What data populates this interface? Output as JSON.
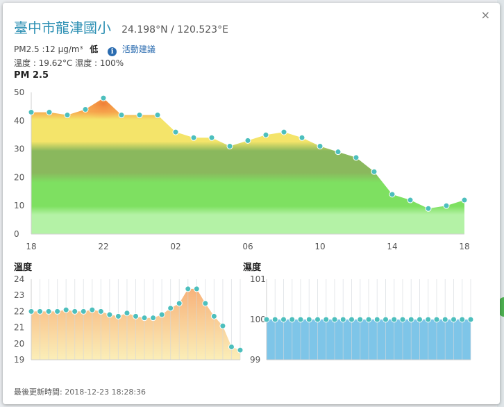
{
  "popup": {
    "close_label": "×",
    "station_name": "臺中市龍津國小",
    "coordinates": "24.198°N / 120.523°E",
    "pm25_reading": "PM2.5 :12 μg/m³",
    "pm25_level": "低",
    "info_icon_glyph": "i",
    "activity_link": "活動建議",
    "weather": "溫度 : 19.62°C  濕度 : 100%",
    "updated_label": "最後更新時間:",
    "updated_time": "2018-12-23 18:28:36"
  },
  "chart_data": [
    {
      "type": "area",
      "title": "PM 2.5",
      "x_ticks": [
        "18",
        "22",
        "02",
        "06",
        "10",
        "14",
        "18"
      ],
      "y_ticks": [
        0,
        10,
        20,
        30,
        40,
        50
      ],
      "ylim": [
        0,
        50
      ],
      "x_count": 25,
      "values": [
        43,
        43,
        42,
        44,
        48,
        42,
        42,
        42,
        36,
        34,
        34,
        31,
        33,
        35,
        36,
        34,
        31,
        29,
        27,
        22,
        14,
        12,
        9,
        10,
        12
      ],
      "bands": [
        {
          "from": 0,
          "to": 8,
          "color": "#b4f2a6"
        },
        {
          "from": 8,
          "to": 20,
          "color": "#7ee061"
        },
        {
          "from": 20,
          "to": 31,
          "color": "#8ab85d"
        },
        {
          "from": 31,
          "to": 42,
          "color": "#f4e46a"
        },
        {
          "from": 42,
          "to": 50,
          "color": "#f7a94f"
        }
      ],
      "marker_color": "#4dbfbd",
      "grid": false
    },
    {
      "type": "area",
      "title": "溫度",
      "y_ticks": [
        19,
        20,
        21,
        22,
        23,
        24
      ],
      "ylim": [
        19,
        24
      ],
      "x_count": 25,
      "values": [
        22,
        22,
        22,
        22,
        22.1,
        22,
        22,
        22.1,
        22,
        21.8,
        21.7,
        21.9,
        21.7,
        21.6,
        21.6,
        21.8,
        22.2,
        22.5,
        23.4,
        23.4,
        22.5,
        21.7,
        21.1,
        19.8,
        19.6
      ],
      "gradient": [
        "#f7b27a",
        "#fbeeb8"
      ],
      "marker_color": "#4dbfbd",
      "grid": true
    },
    {
      "type": "area",
      "title": "濕度",
      "y_ticks": [
        99,
        100,
        101
      ],
      "ylim": [
        99,
        101
      ],
      "x_count": 25,
      "values": [
        100,
        100,
        100,
        100,
        100,
        100,
        100,
        100,
        100,
        100,
        100,
        100,
        100,
        100,
        100,
        100,
        100,
        100,
        100,
        100,
        100,
        100,
        100,
        100,
        100
      ],
      "fill_color": "#7ec5e8",
      "marker_color": "#4dbfbd",
      "grid": true
    }
  ]
}
